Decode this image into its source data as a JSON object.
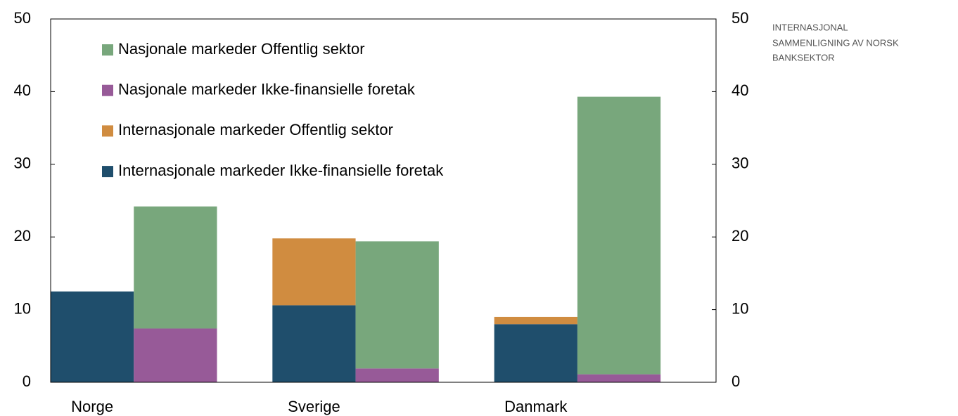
{
  "chart_data": {
    "type": "bar",
    "categories": [
      "Norge",
      "Sverige",
      "Danmark"
    ],
    "series": [
      {
        "name": "Internasjonale markeder Ikke-finansielle foretak",
        "color": "#1f4e6c",
        "stack": 0,
        "values": [
          12.5,
          10.6,
          8.0
        ]
      },
      {
        "name": "Internasjonale markeder Offentlig sektor",
        "color": "#d08c40",
        "stack": 0,
        "values": [
          0,
          9.2,
          1.0
        ]
      },
      {
        "name": "Nasjonale markeder Ikke-finansielle foretak",
        "color": "#975a98",
        "stack": 1,
        "values": [
          7.4,
          1.9,
          1.1
        ]
      },
      {
        "name": "Nasjonale markeder Offentlig sektor",
        "color": "#78a77c",
        "stack": 1,
        "values": [
          16.8,
          17.5,
          38.2
        ]
      }
    ],
    "ylim": [
      0,
      50
    ],
    "yticks": [
      0,
      10,
      20,
      30,
      40,
      50
    ],
    "y2lim": [
      0,
      50
    ],
    "y2ticks": [
      0,
      10,
      20,
      30,
      40,
      50
    ],
    "annotation": [
      "INTERNASJONAL",
      "SAMMENLIGNING AV NORSK",
      "BANKSEKTOR"
    ]
  }
}
